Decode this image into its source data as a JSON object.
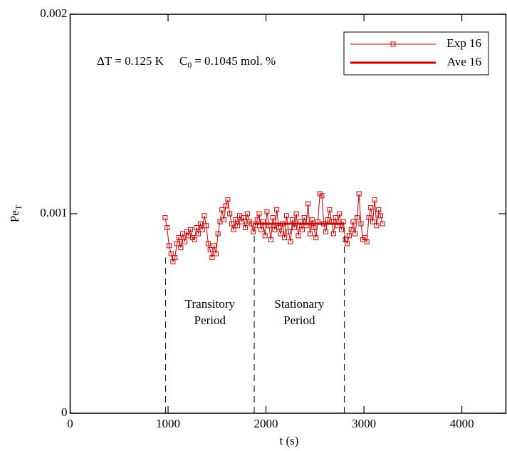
{
  "chart_data": {
    "type": "line",
    "xlabel": "t (s)",
    "ylabel": {
      "base": "Pe",
      "sub": "T"
    },
    "annotation": {
      "delta": "ΔT = 0.125 K",
      "c": "C",
      "c_sub": "0",
      "c_rest": "= 0.1045 mol. %"
    },
    "period_labels": [
      [
        "Transitory",
        "Period"
      ],
      [
        "Stationary",
        "Period"
      ]
    ],
    "period_bounds": {
      "x": [
        975,
        1880,
        2800
      ],
      "top": [
        0.00078,
        0.00093,
        0.00093
      ]
    },
    "xlim": [
      0,
      4450
    ],
    "xticks": [
      0,
      1000,
      2000,
      3000,
      4000
    ],
    "ylim": [
      0,
      0.002
    ],
    "yticks": [
      0,
      0.001,
      0.002
    ],
    "legend": "upper right",
    "series": [
      {
        "name": "Exp 16",
        "color": "#cc0000",
        "marker": "square",
        "x": [
          970,
          990,
          1010,
          1030,
          1050,
          1070,
          1090,
          1110,
          1130,
          1150,
          1170,
          1190,
          1210,
          1230,
          1250,
          1270,
          1290,
          1310,
          1330,
          1350,
          1370,
          1390,
          1410,
          1430,
          1450,
          1470,
          1490,
          1510,
          1530,
          1550,
          1570,
          1590,
          1610,
          1630,
          1650,
          1670,
          1690,
          1710,
          1730,
          1750,
          1770,
          1790,
          1810,
          1830,
          1850,
          1870,
          1890,
          1910,
          1930,
          1950,
          1970,
          1990,
          2010,
          2030,
          2050,
          2070,
          2090,
          2110,
          2130,
          2150,
          2170,
          2190,
          2210,
          2230,
          2250,
          2270,
          2290,
          2310,
          2330,
          2350,
          2370,
          2390,
          2410,
          2430,
          2450,
          2470,
          2490,
          2510,
          2530,
          2550,
          2570,
          2590,
          2610,
          2630,
          2650,
          2670,
          2690,
          2710,
          2730,
          2750,
          2770,
          2790,
          2810,
          2830,
          2850,
          2870,
          2890,
          2910,
          2930,
          2950,
          2970,
          2990,
          3010,
          3030,
          3050,
          3070,
          3090,
          3110,
          3130,
          3150,
          3170,
          3190
        ],
        "values": [
          0.00098,
          0.00093,
          0.00084,
          0.0008,
          0.00076,
          0.00078,
          0.00085,
          0.00088,
          0.00083,
          0.0009,
          0.00086,
          0.00091,
          0.00089,
          0.00092,
          0.00088,
          0.00087,
          0.00093,
          0.0009,
          0.00095,
          0.00092,
          0.00099,
          0.00094,
          0.00085,
          0.00082,
          0.00078,
          0.00084,
          0.0008,
          0.0009,
          0.00096,
          0.00102,
          0.00097,
          0.00104,
          0.00107,
          0.001,
          0.00095,
          0.00092,
          0.00097,
          0.00094,
          0.00099,
          0.00096,
          0.00098,
          0.00093,
          0.001,
          0.00096,
          0.00095,
          0.00091,
          0.00094,
          0.00097,
          0.001,
          0.00092,
          0.00096,
          0.00089,
          0.00101,
          0.00094,
          0.00087,
          0.00098,
          0.00092,
          0.00102,
          0.00093,
          0.0009,
          0.00095,
          0.00088,
          0.00099,
          0.00091,
          0.00086,
          0.00097,
          0.00093,
          0.001,
          0.00089,
          0.00096,
          0.00092,
          0.00098,
          0.00094,
          0.00105,
          0.0009,
          0.00097,
          0.00093,
          0.00088,
          0.00096,
          0.0011,
          0.00109,
          0.00095,
          0.00091,
          0.00097,
          0.00102,
          0.00096,
          0.0009,
          0.00098,
          0.00094,
          0.001,
          0.00092,
          0.00096,
          0.00087,
          0.00085,
          0.00089,
          0.00092,
          0.00096,
          0.0009,
          0.00098,
          0.0011,
          0.00095,
          0.00087,
          0.00088,
          0.00086,
          0.00098,
          0.00103,
          0.00096,
          0.00107,
          0.00094,
          0.00102,
          0.00099,
          0.00095
        ]
      },
      {
        "name": "Ave 16",
        "color": "#cc0000",
        "x": [
          1880,
          2800
        ],
        "values": [
          0.00095,
          0.00095
        ]
      }
    ]
  }
}
